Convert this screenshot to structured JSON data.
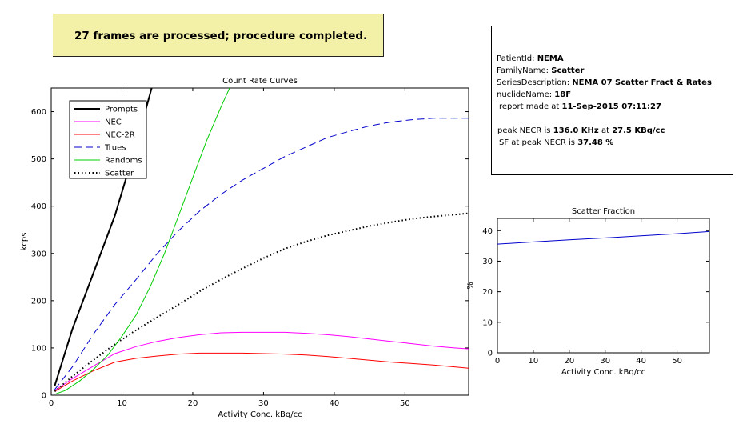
{
  "status": {
    "message": "27 frames are processed; procedure completed."
  },
  "report": {
    "patient_id_label": "PatientId:",
    "patient_id": "NEMA",
    "family_name_label": "FamilyName:",
    "family_name": "Scatter",
    "series_label": "SeriesDescription:",
    "series": "NEMA 07 Scatter Fract & Rates",
    "nuclide_label": "nuclideName:",
    "nuclide": "18F",
    "report_label": "report made at",
    "report_time": "11-Sep-2015 07:11:27",
    "necr_label": "peak NECR is",
    "necr_value": "136.0 KHz",
    "necr_at_label": "at",
    "necr_at_value": "27.5 KBq/cc",
    "sf_label": "SF at peak NECR is",
    "sf_value": "37.48 %"
  },
  "chart_data": [
    {
      "type": "line",
      "title": "Count Rate Curves",
      "xlabel": "Activity Conc. kBq/cc",
      "ylabel": "kcps",
      "xlim": [
        0,
        59
      ],
      "ylim": [
        0,
        650
      ],
      "xticks": [
        0,
        10,
        20,
        30,
        40,
        50
      ],
      "yticks": [
        0,
        100,
        200,
        300,
        400,
        500,
        600
      ],
      "legend": "top-left",
      "series": [
        {
          "name": "Prompts",
          "color": "#000000",
          "style": "solid",
          "width": 2,
          "x": [
            0.5,
            3,
            6,
            9,
            12,
            14.2
          ],
          "y": [
            20,
            140,
            260,
            380,
            530,
            650
          ]
        },
        {
          "name": "NEC",
          "color": "#ff00ff",
          "style": "solid",
          "width": 1,
          "x": [
            0.5,
            3,
            6,
            9,
            12,
            15,
            18,
            21,
            24,
            27,
            30,
            33,
            36,
            39,
            42,
            45,
            48,
            51,
            54,
            57,
            59
          ],
          "y": [
            10,
            35,
            62,
            88,
            103,
            114,
            122,
            128,
            132,
            133,
            133,
            133,
            131,
            128,
            124,
            119,
            114,
            109,
            104,
            100,
            98
          ]
        },
        {
          "name": "NEC-2R",
          "color": "#ff0000",
          "style": "solid",
          "width": 1,
          "x": [
            0.5,
            3,
            6,
            9,
            12,
            15,
            18,
            21,
            24,
            27,
            30,
            33,
            36,
            39,
            42,
            45,
            48,
            51,
            54,
            57,
            59
          ],
          "y": [
            8,
            30,
            52,
            70,
            78,
            83,
            87,
            89,
            89,
            89,
            88,
            87,
            85,
            82,
            78,
            74,
            70,
            67,
            64,
            60,
            57
          ]
        },
        {
          "name": "Trues",
          "color": "#0000cc",
          "style": "dashed",
          "width": 1,
          "x": [
            0.5,
            3,
            6,
            9,
            12,
            15,
            18,
            21,
            24,
            27,
            30,
            33,
            36,
            39,
            42,
            45,
            48,
            51,
            54,
            57,
            59
          ],
          "y": [
            12,
            60,
            130,
            192,
            245,
            300,
            348,
            390,
            425,
            455,
            480,
            505,
            525,
            545,
            558,
            570,
            578,
            583,
            586,
            586,
            586
          ]
        },
        {
          "name": "Randoms",
          "color": "#00cc00",
          "style": "solid",
          "width": 1,
          "x": [
            0.5,
            2,
            4,
            6,
            8,
            10,
            12,
            14,
            16,
            18,
            20,
            22,
            24,
            25.2
          ],
          "y": [
            2,
            10,
            30,
            55,
            85,
            125,
            170,
            230,
            300,
            380,
            460,
            540,
            610,
            650
          ]
        },
        {
          "name": "Scatter",
          "color": "#000000",
          "style": "dotted",
          "width": 2,
          "x": [
            0.5,
            3,
            6,
            9,
            12,
            15,
            18,
            21,
            24,
            27,
            30,
            33,
            36,
            39,
            42,
            45,
            48,
            51,
            54,
            57,
            59
          ],
          "y": [
            8,
            40,
            75,
            108,
            138,
            165,
            192,
            220,
            245,
            268,
            290,
            310,
            325,
            338,
            348,
            358,
            366,
            373,
            378,
            382,
            385
          ]
        }
      ]
    },
    {
      "type": "line",
      "title": "Scatter Fraction",
      "xlabel": "Activity Conc. kBq/cc",
      "ylabel": "%",
      "xlim": [
        0,
        59
      ],
      "ylim": [
        0,
        44
      ],
      "xticks": [
        0,
        10,
        20,
        30,
        40,
        50
      ],
      "yticks": [
        0,
        10,
        20,
        30,
        40
      ],
      "series": [
        {
          "color": "#0000cc",
          "style": "solid",
          "width": 1,
          "x": [
            0,
            10,
            20,
            30,
            40,
            50,
            59
          ],
          "y": [
            35.6,
            36.3,
            37.0,
            37.6,
            38.3,
            39.0,
            39.7
          ]
        }
      ]
    }
  ]
}
